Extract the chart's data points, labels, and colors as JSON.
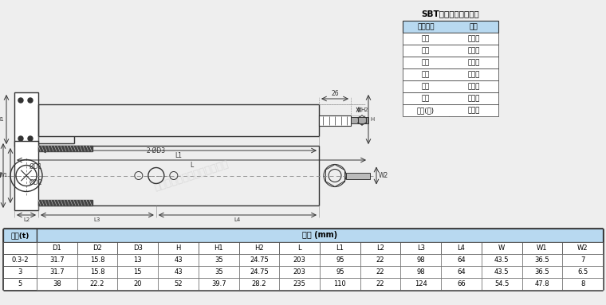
{
  "bg_color": "#eeeeee",
  "table_header_color": "#b8d9f0",
  "cable_title": "SBT传感器电缆线色标",
  "cable_headers": [
    "电缆颜色",
    "定义"
  ],
  "cable_rows": [
    [
      "绿色",
      "正激励"
    ],
    [
      "黑色",
      "负激励"
    ],
    [
      "黄色",
      "正反馈"
    ],
    [
      "蓝色",
      "负反馈"
    ],
    [
      "白色",
      "正信号"
    ],
    [
      "红色",
      "负信号"
    ],
    [
      "黄色(长)",
      "屏蔽线"
    ]
  ],
  "dim_table_cap_header": "容量(t)",
  "dim_table_size_header": "尺寸 (mm)",
  "dim_col_headers": [
    "D1",
    "D2",
    "D3",
    "H",
    "H1",
    "H2",
    "L",
    "L1",
    "L2",
    "L3",
    "L4",
    "W",
    "W1",
    "W2"
  ],
  "dim_rows": [
    [
      "0.3-2",
      "31.7",
      "15.8",
      "13",
      "43",
      "35",
      "24.75",
      "203",
      "95",
      "22",
      "98",
      "64",
      "43.5",
      "36.5",
      "7"
    ],
    [
      "3",
      "31.7",
      "15.8",
      "15",
      "43",
      "35",
      "24.75",
      "203",
      "95",
      "22",
      "98",
      "64",
      "43.5",
      "36.5",
      "6.5"
    ],
    [
      "5",
      "38",
      "22.2",
      "20",
      "52",
      "39.7",
      "28.2",
      "235",
      "110",
      "22",
      "124",
      "66",
      "54.5",
      "47.8",
      "8"
    ]
  ],
  "watermark": "广州双鑫自动化科技有限公司",
  "line_color": "#333333"
}
